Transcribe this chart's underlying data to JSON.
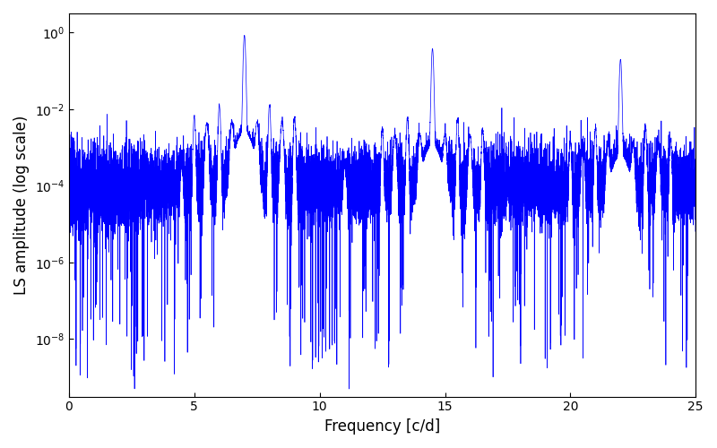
{
  "title": "",
  "xlabel": "Frequency [c/d]",
  "ylabel": "LS amplitude (log scale)",
  "xlim": [
    0,
    25
  ],
  "ylim_log": [
    -9.5,
    0.5
  ],
  "line_color": "#0000ff",
  "line_width": 0.5,
  "figsize": [
    8.0,
    5.0
  ],
  "dpi": 100,
  "yscale": "log",
  "yticks": [
    1e-08,
    1e-06,
    0.0001,
    0.01,
    1.0
  ],
  "xticks": [
    0,
    5,
    10,
    15,
    20,
    25
  ],
  "peak_freqs": [
    7.0,
    14.5,
    22.0
  ],
  "peak_amps": [
    0.85,
    0.38,
    0.2
  ],
  "sub_peak_freqs": [
    4.5,
    11.0,
    17.5
  ],
  "sub_peak_amps": [
    0.0003,
    0.0003,
    4e-05
  ],
  "noise_floor_log": -4.0,
  "noise_std": 0.5,
  "seed": 123
}
